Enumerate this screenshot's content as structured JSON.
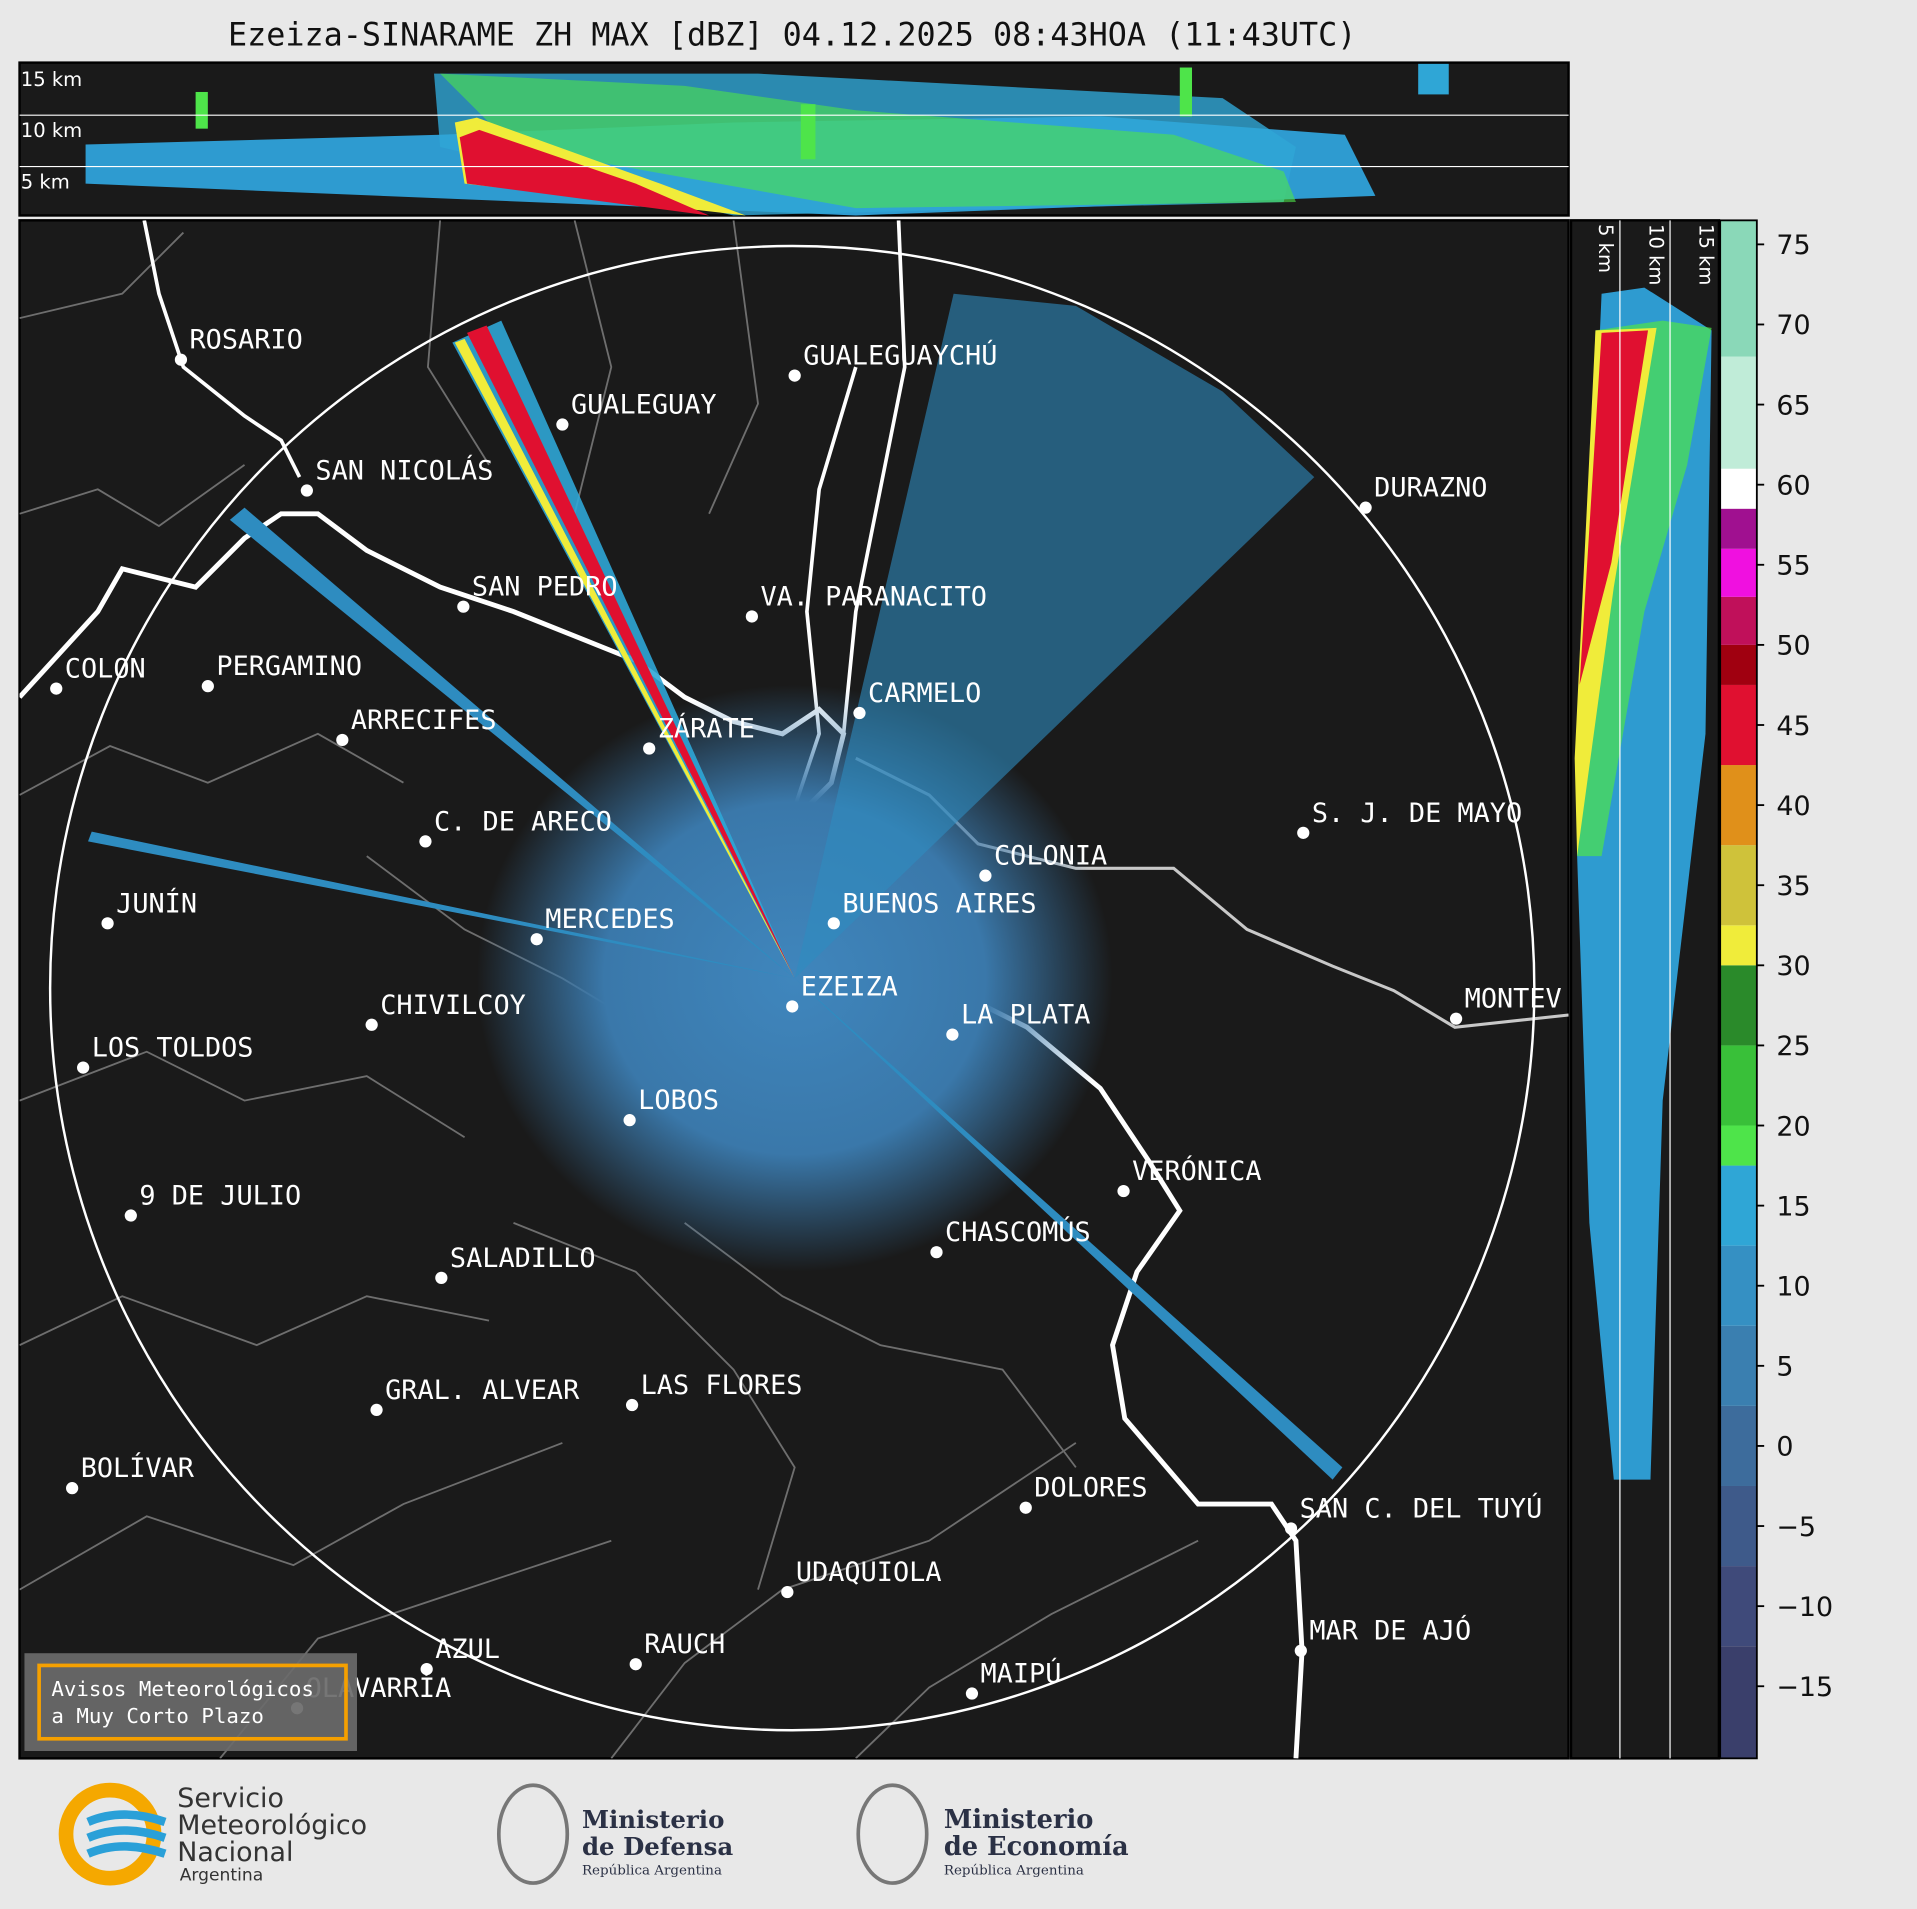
{
  "title": "Ezeiza-SINARAME ZH MAX [dBZ] 04.12.2025 08:43HOA (11:43UTC)",
  "top_panel": {
    "height_labels": [
      "15 km",
      "10 km",
      "5 km"
    ]
  },
  "side_panel": {
    "height_labels": [
      "5 km",
      "10 km",
      "15 km"
    ]
  },
  "cities": [
    "ROSARIO",
    "GUALEGUAYCHÚ",
    "GUALEGUAY",
    "SAN NICOLÁS",
    "DURAZNO",
    "SAN PEDRO",
    "VA. PARANACITO",
    "COLON",
    "PERGAMINO",
    "CARMELO",
    "ARRECIFES",
    "ZÁRATE",
    "S. J. DE MAYO",
    "C. DE ARECO",
    "COLONIA",
    "JUNÍN",
    "BUENOS AIRES",
    "MERCEDES",
    "EZEIZA",
    "CHIVILCOY",
    "MONTEV",
    "LA PLATA",
    "LOS TOLDOS",
    "LOBOS",
    "VERÓNICA",
    "9 DE JULIO",
    "CHASCOMÚS",
    "SALADILLO",
    "GRAL. ALVEAR",
    "LAS FLORES",
    "BOLÍVAR",
    "DOLORES",
    "SAN C. DEL TUYÚ",
    "UDAQUIOLA",
    "MAR DE AJÓ",
    "RAUCH",
    "AZUL",
    "MAIPÚ",
    "OLAVARRÍA"
  ],
  "warning_box": [
    "Avisos Meteorológicos",
    "a Muy Corto Plazo"
  ],
  "colorbar": {
    "lim": [
      -19.5,
      76.5
    ],
    "ticks": [
      75,
      70,
      65,
      60,
      55,
      50,
      45,
      40,
      35,
      30,
      25,
      20,
      15,
      10,
      5,
      0,
      {
        "value": -5,
        "label": "−5"
      },
      {
        "value": -10,
        "label": "−10"
      },
      {
        "value": -15,
        "label": "−15"
      }
    ],
    "bounds": [
      -19.5,
      -12.5,
      -7.5,
      -2.5,
      2.5,
      7.5,
      12.5,
      17.5,
      20,
      25,
      30,
      32.5,
      37.5,
      42.5,
      47.5,
      50,
      53,
      56,
      58.5,
      61,
      68,
      76.5
    ],
    "colors": [
      "#3a3f6b",
      "#3f4a7a",
      "#3e5a8a",
      "#3d6c9c",
      "#3a7fb0",
      "#3590c3",
      "#2fa6d6",
      "#4ee44a",
      "#39c039",
      "#2a8a2a",
      "#f0ec3a",
      "#cfc23a",
      "#e0901a",
      "#e01030",
      "#a00010",
      "#c0105a",
      "#f010e0",
      "#a01090",
      "#ffffff",
      "#c0ecd8",
      "#8ad8b8"
    ]
  },
  "footer": {
    "smn": [
      "Servicio",
      "Meteorológico",
      "Nacional",
      "Argentina"
    ],
    "defensa": [
      "Ministerio",
      "de Defensa",
      "República Argentina"
    ],
    "economia": [
      "Ministerio",
      "de Economía",
      "República Argentina"
    ]
  }
}
